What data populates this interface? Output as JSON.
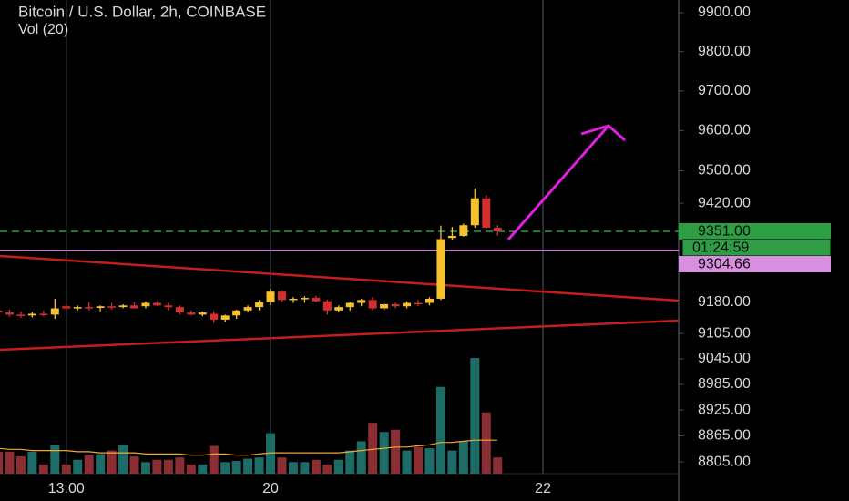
{
  "chart_data": {
    "type": "candlestick",
    "title": "Bitcoin / U.S. Dollar, 2h, COINBASE",
    "subtitle": "Vol (20)",
    "categories": [
      null,
      null,
      null,
      null,
      null,
      null,
      "13:00",
      null,
      null,
      null,
      null,
      null,
      null,
      null,
      null,
      null,
      null,
      null,
      null,
      null,
      null,
      null,
      null,
      null,
      "20",
      null,
      null,
      null,
      null,
      null,
      null,
      null,
      null,
      null,
      null,
      null,
      null,
      null,
      null,
      null,
      null,
      null,
      null,
      null,
      null,
      null,
      null,
      null,
      "22"
    ],
    "open": [
      9160,
      9155,
      9150,
      9148,
      9152,
      9150,
      9170,
      9166,
      9168,
      9166,
      9170,
      9168,
      9172,
      9170,
      9178,
      9172,
      9168,
      9155,
      9150,
      9152,
      9138,
      9148,
      9160,
      9168,
      9180,
      9205,
      9185,
      9188,
      9190,
      9182,
      9160,
      9168,
      9178,
      9185,
      9165,
      9175,
      9170,
      9178,
      9178,
      9188,
      9335,
      9340,
      9366,
      9432,
      9360,
      null,
      null,
      null,
      null
    ],
    "high": [
      9168,
      9162,
      9158,
      9156,
      9160,
      9188,
      9175,
      9172,
      9180,
      9172,
      9178,
      9175,
      9180,
      9182,
      9182,
      9178,
      9172,
      9160,
      9158,
      9158,
      9150,
      9162,
      9172,
      9185,
      9212,
      9208,
      9192,
      9194,
      9195,
      9186,
      9172,
      9180,
      9188,
      9192,
      9178,
      9180,
      9182,
      9185,
      9192,
      9365,
      9362,
      9370,
      9456,
      9440,
      9366,
      null,
      null,
      null,
      null
    ],
    "low": [
      9150,
      9145,
      9142,
      9143,
      9146,
      9140,
      9160,
      9160,
      9160,
      9158,
      9162,
      9165,
      9168,
      9165,
      9170,
      9160,
      9150,
      9148,
      9146,
      9130,
      9132,
      9140,
      9155,
      9160,
      9172,
      9180,
      9178,
      9178,
      9180,
      9150,
      9155,
      9160,
      9170,
      9160,
      9160,
      9165,
      9165,
      9170,
      9172,
      9185,
      9330,
      9338,
      9360,
      9358,
      9340,
      null,
      null,
      null,
      null
    ],
    "close": [
      9155,
      9150,
      9148,
      9152,
      9150,
      9165,
      9165,
      9168,
      9165,
      9170,
      9168,
      9172,
      9165,
      9178,
      9172,
      9168,
      9155,
      9150,
      9155,
      9138,
      9148,
      9160,
      9168,
      9180,
      9205,
      9185,
      9188,
      9190,
      9182,
      9160,
      9168,
      9178,
      9185,
      9165,
      9175,
      9170,
      9178,
      9175,
      9188,
      9332,
      9340,
      9366,
      9432,
      9360,
      9351,
      null,
      null,
      null,
      null
    ],
    "volume": [
      19,
      19,
      15,
      19,
      8,
      25,
      8,
      12,
      16,
      17,
      20,
      25,
      15,
      10,
      12,
      12,
      14,
      8,
      8,
      24,
      10,
      11,
      13,
      14,
      35,
      14,
      10,
      10,
      12,
      8,
      12,
      20,
      28,
      44,
      36,
      38,
      20,
      23,
      22,
      75,
      20,
      28,
      100,
      53,
      14,
      null,
      null,
      null,
      null
    ],
    "volume_ma": [
      22,
      21,
      21,
      20,
      20,
      20,
      20,
      19,
      19,
      18,
      18,
      18,
      18,
      17,
      17,
      17,
      17,
      16,
      16,
      17,
      17,
      16,
      16,
      17,
      18,
      18,
      18,
      18,
      18,
      18,
      18,
      19,
      20,
      21,
      22,
      23,
      23,
      24,
      25,
      27,
      27,
      28,
      29,
      29,
      29,
      null,
      null,
      null,
      null
    ],
    "vlim": [
      0,
      100
    ],
    "colors": {
      "up": "#f6c02f",
      "down": "#d32f2f",
      "volume_up": "#1d6c67",
      "volume_down": "#8b2e34",
      "volume_ma": "#f0a830"
    },
    "ylim": [
      8778,
      9933
    ],
    "log_scale": true,
    "yticks": [
      {
        "value": 9900,
        "label": "9900.00"
      },
      {
        "value": 9800,
        "label": "9800.00"
      },
      {
        "value": 9700,
        "label": "9700.00"
      },
      {
        "value": 9600,
        "label": "9600.00"
      },
      {
        "value": 9500,
        "label": "9500.00"
      },
      {
        "value": 9420,
        "label": "9420.00"
      },
      {
        "value": 9180,
        "label": "9180.00"
      },
      {
        "value": 9105,
        "label": "9105.00"
      },
      {
        "value": 9045,
        "label": "9045.00"
      },
      {
        "value": 8985,
        "label": "8985.00"
      },
      {
        "value": 8925,
        "label": "8925.00"
      },
      {
        "value": 8865,
        "label": "8865.00"
      },
      {
        "value": 8805,
        "label": "8805.00"
      }
    ],
    "price_lines": [
      {
        "value": 9351,
        "label": "9351.00",
        "color": "#2e9e45",
        "dashed": true,
        "countdown": "01:24:59"
      },
      {
        "value": 9304.66,
        "label": "9304.66",
        "color": "#d98fe0",
        "dashed": false
      }
    ]
  }
}
